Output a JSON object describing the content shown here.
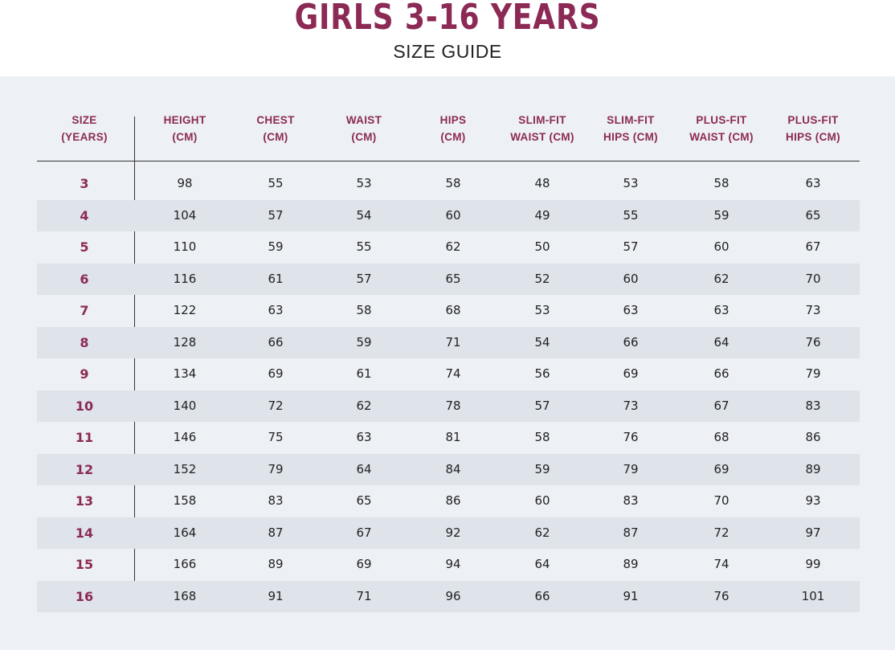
{
  "title": "GIRLS 3-16 YEARS",
  "subtitle": "SIZE GUIDE",
  "colors": {
    "accent": "#8c2a55",
    "panel": "#edf0f4",
    "stripe": "#dfe3ea"
  },
  "columns": [
    [
      "SIZE",
      "(YEARS)"
    ],
    [
      "HEIGHT",
      "(CM)"
    ],
    [
      "CHEST",
      "(CM)"
    ],
    [
      "WAIST",
      "(CM)"
    ],
    [
      "HIPS",
      "(CM)"
    ],
    [
      "SLIM-FIT",
      "WAIST (CM)"
    ],
    [
      "SLIM-FIT",
      "HIPS (CM)"
    ],
    [
      "PLUS-FIT",
      "WAIST (CM)"
    ],
    [
      "PLUS-FIT",
      "HIPS (CM)"
    ]
  ],
  "rows": [
    [
      "3",
      "98",
      "55",
      "53",
      "58",
      "48",
      "53",
      "58",
      "63"
    ],
    [
      "4",
      "104",
      "57",
      "54",
      "60",
      "49",
      "55",
      "59",
      "65"
    ],
    [
      "5",
      "110",
      "59",
      "55",
      "62",
      "50",
      "57",
      "60",
      "67"
    ],
    [
      "6",
      "116",
      "61",
      "57",
      "65",
      "52",
      "60",
      "62",
      "70"
    ],
    [
      "7",
      "122",
      "63",
      "58",
      "68",
      "53",
      "63",
      "63",
      "73"
    ],
    [
      "8",
      "128",
      "66",
      "59",
      "71",
      "54",
      "66",
      "64",
      "76"
    ],
    [
      "9",
      "134",
      "69",
      "61",
      "74",
      "56",
      "69",
      "66",
      "79"
    ],
    [
      "10",
      "140",
      "72",
      "62",
      "78",
      "57",
      "73",
      "67",
      "83"
    ],
    [
      "11",
      "146",
      "75",
      "63",
      "81",
      "58",
      "76",
      "68",
      "86"
    ],
    [
      "12",
      "152",
      "79",
      "64",
      "84",
      "59",
      "79",
      "69",
      "89"
    ],
    [
      "13",
      "158",
      "83",
      "65",
      "86",
      "60",
      "83",
      "70",
      "93"
    ],
    [
      "14",
      "164",
      "87",
      "67",
      "92",
      "62",
      "87",
      "72",
      "97"
    ],
    [
      "15",
      "166",
      "89",
      "69",
      "94",
      "64",
      "89",
      "74",
      "99"
    ],
    [
      "16",
      "168",
      "91",
      "71",
      "96",
      "66",
      "91",
      "76",
      "101"
    ]
  ]
}
